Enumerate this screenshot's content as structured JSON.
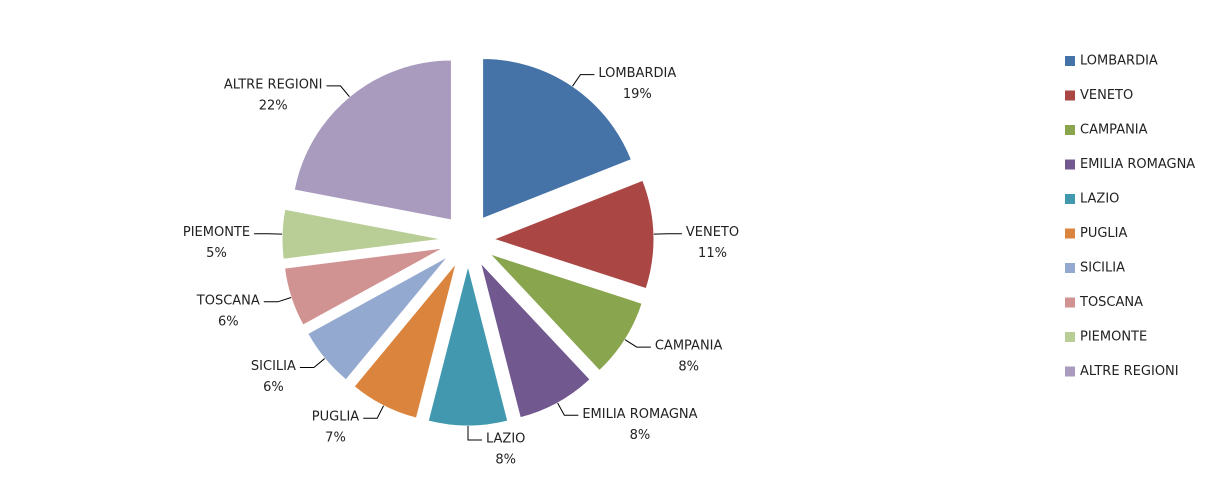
{
  "chart_data": {
    "type": "pie",
    "categories": [
      "LOMBARDIA",
      "VENETO",
      "CAMPANIA",
      "EMILIA ROMAGNA",
      "LAZIO",
      "PUGLIA",
      "SICILIA",
      "TOSCANA",
      "PIEMONTE",
      "ALTRE REGIONI"
    ],
    "values": [
      19,
      11,
      8,
      8,
      8,
      7,
      6,
      6,
      5,
      22
    ],
    "value_labels": [
      "19%",
      "11%",
      "8%",
      "8%",
      "8%",
      "7%",
      "6%",
      "6%",
      "5%",
      "22%"
    ],
    "colors": [
      "#4572A7",
      "#AA4643",
      "#89A54E",
      "#71588F",
      "#4198AF",
      "#DB843D",
      "#93A9CF",
      "#D19392",
      "#B9CD96",
      "#A99BBD"
    ],
    "legend": "right"
  }
}
